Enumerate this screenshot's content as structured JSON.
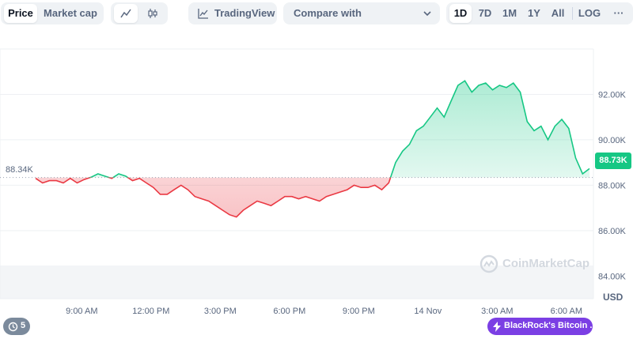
{
  "toolbar": {
    "view_tabs": [
      "Price",
      "Market cap"
    ],
    "active_view": "Price",
    "chart_style": [
      "line-chart-icon",
      "candlestick-icon"
    ],
    "active_style": "line-chart-icon",
    "tradingview_label": "TradingView",
    "compare_label": "Compare with",
    "ranges": [
      "1D",
      "7D",
      "1M",
      "1Y",
      "All"
    ],
    "active_range": "1D",
    "scale_label": "LOG",
    "more_label": "···"
  },
  "chart_data": {
    "type": "area",
    "baseline": 88.34,
    "baseline_label": "88.34K",
    "current_price_label": "88.73K",
    "colors": {
      "up": "#16c784",
      "down": "#ea3943",
      "volume": "#e6e9ee",
      "grid": "#eef0f3"
    },
    "y_unit": "USD",
    "ylim": [
      83.0,
      94.0
    ],
    "y_ticks": [
      {
        "v": 92,
        "label": "92.00K"
      },
      {
        "v": 90,
        "label": "90.00K"
      },
      {
        "v": 88,
        "label": "88.00K"
      },
      {
        "v": 86,
        "label": "86.00K"
      },
      {
        "v": 84,
        "label": "84.00K"
      }
    ],
    "x_range_hours": [
      0,
      24
    ],
    "x_ticks": [
      {
        "t": 2,
        "label": "9:00 AM"
      },
      {
        "t": 5,
        "label": "12:00 PM"
      },
      {
        "t": 8,
        "label": "3:00 PM"
      },
      {
        "t": 11,
        "label": "6:00 PM"
      },
      {
        "t": 14,
        "label": "9:00 PM"
      },
      {
        "t": 17,
        "label": "14 Nov"
      },
      {
        "t": 20,
        "label": "3:00 AM"
      },
      {
        "t": 23,
        "label": "6:00 AM"
      }
    ],
    "series": [
      {
        "points": [
          [
            0.0,
            88.3
          ],
          [
            0.3,
            88.1
          ],
          [
            0.6,
            88.2
          ],
          [
            0.9,
            88.2
          ],
          [
            1.2,
            88.1
          ],
          [
            1.5,
            88.3
          ],
          [
            1.8,
            88.1
          ],
          [
            2.1,
            88.25
          ],
          [
            2.4,
            88.35
          ],
          [
            2.7,
            88.5
          ],
          [
            3.0,
            88.4
          ],
          [
            3.3,
            88.3
          ],
          [
            3.6,
            88.5
          ],
          [
            3.9,
            88.4
          ],
          [
            4.2,
            88.2
          ],
          [
            4.5,
            88.3
          ],
          [
            4.8,
            88.1
          ],
          [
            5.1,
            87.9
          ],
          [
            5.4,
            87.6
          ],
          [
            5.7,
            87.6
          ],
          [
            6.0,
            87.8
          ],
          [
            6.3,
            88.0
          ],
          [
            6.6,
            87.8
          ],
          [
            6.9,
            87.5
          ],
          [
            7.2,
            87.4
          ],
          [
            7.5,
            87.3
          ],
          [
            7.8,
            87.1
          ],
          [
            8.1,
            86.9
          ],
          [
            8.4,
            86.7
          ],
          [
            8.7,
            86.6
          ],
          [
            9.0,
            86.9
          ],
          [
            9.3,
            87.1
          ],
          [
            9.6,
            87.3
          ],
          [
            9.9,
            87.2
          ],
          [
            10.2,
            87.1
          ],
          [
            10.5,
            87.3
          ],
          [
            10.8,
            87.5
          ],
          [
            11.1,
            87.5
          ],
          [
            11.4,
            87.4
          ],
          [
            11.7,
            87.5
          ],
          [
            12.0,
            87.4
          ],
          [
            12.3,
            87.3
          ],
          [
            12.6,
            87.5
          ],
          [
            12.9,
            87.6
          ],
          [
            13.2,
            87.7
          ],
          [
            13.5,
            87.8
          ],
          [
            13.8,
            88.0
          ],
          [
            14.1,
            87.9
          ],
          [
            14.4,
            87.9
          ],
          [
            14.7,
            88.0
          ],
          [
            15.0,
            87.8
          ],
          [
            15.3,
            88.1
          ],
          [
            15.6,
            89.0
          ],
          [
            15.9,
            89.5
          ],
          [
            16.2,
            89.8
          ],
          [
            16.5,
            90.4
          ],
          [
            16.8,
            90.6
          ],
          [
            17.1,
            91.0
          ],
          [
            17.4,
            91.4
          ],
          [
            17.7,
            91.0
          ],
          [
            18.0,
            91.7
          ],
          [
            18.3,
            92.4
          ],
          [
            18.6,
            92.6
          ],
          [
            18.9,
            92.1
          ],
          [
            19.2,
            92.4
          ],
          [
            19.5,
            92.5
          ],
          [
            19.8,
            92.2
          ],
          [
            20.1,
            92.4
          ],
          [
            20.4,
            92.3
          ],
          [
            20.7,
            92.5
          ],
          [
            21.0,
            92.1
          ],
          [
            21.3,
            90.8
          ],
          [
            21.6,
            90.4
          ],
          [
            21.9,
            90.6
          ],
          [
            22.2,
            90.0
          ],
          [
            22.5,
            90.6
          ],
          [
            22.8,
            90.9
          ],
          [
            23.1,
            90.5
          ],
          [
            23.4,
            89.2
          ],
          [
            23.7,
            88.5
          ],
          [
            24.0,
            88.73
          ]
        ]
      }
    ]
  },
  "watermark": {
    "text": "CoinMarketCap"
  },
  "events_count": "5",
  "news_badge": "BlackRock's Bitcoin ..."
}
